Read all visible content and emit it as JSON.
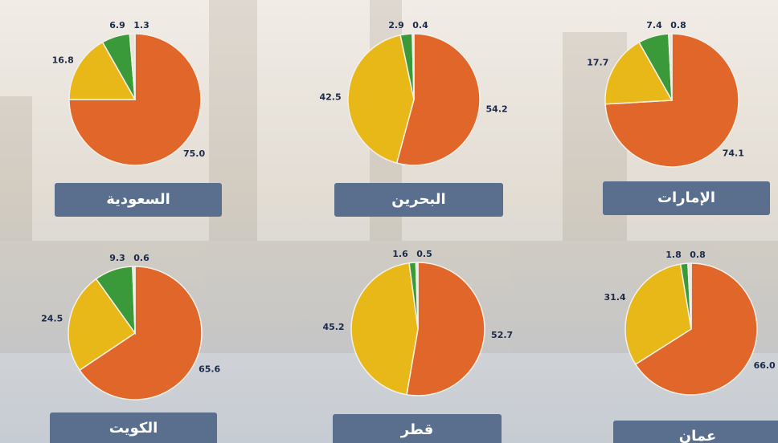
{
  "chart_data": [
    {
      "type": "pie",
      "title": "السعودية",
      "values": [
        75.0,
        16.8,
        6.9,
        1.3
      ],
      "value_labels": [
        "75.0",
        "16.8",
        "6.9",
        "1.3"
      ],
      "colors": [
        "#e0662a",
        "#e8b818",
        "#3a9a3a",
        "#e8e6dc"
      ]
    },
    {
      "type": "pie",
      "title": "البحرين",
      "values": [
        54.2,
        42.5,
        2.9,
        0.4
      ],
      "value_labels": [
        "54.2",
        "42.5",
        "2.9",
        "0.4"
      ],
      "colors": [
        "#e0662a",
        "#e8b818",
        "#3a9a3a",
        "#e8e6dc"
      ]
    },
    {
      "type": "pie",
      "title": "الإمارات",
      "values": [
        74.1,
        17.7,
        7.4,
        0.8
      ],
      "value_labels": [
        "74.1",
        "17.7",
        "7.4",
        "0.8"
      ],
      "colors": [
        "#e0662a",
        "#e8b818",
        "#3a9a3a",
        "#e8e6dc"
      ]
    },
    {
      "type": "pie",
      "title": "الكويت",
      "values": [
        65.6,
        24.5,
        9.3,
        0.6
      ],
      "value_labels": [
        "65.6",
        "24.5",
        "9.3",
        "0.6"
      ],
      "colors": [
        "#e0662a",
        "#e8b818",
        "#3a9a3a",
        "#e8e6dc"
      ]
    },
    {
      "type": "pie",
      "title": "قطر",
      "values": [
        52.7,
        45.2,
        1.6,
        0.5
      ],
      "value_labels": [
        "52.7",
        "45.2",
        "1.6",
        "0.5"
      ],
      "colors": [
        "#e0662a",
        "#e8b818",
        "#3a9a3a",
        "#e8e6dc"
      ]
    },
    {
      "type": "pie",
      "title": "عمان",
      "values": [
        66.0,
        31.4,
        1.8,
        0.8
      ],
      "value_labels": [
        "66.0",
        "31.4",
        "1.8",
        "0.8"
      ],
      "colors": [
        "#e0662a",
        "#e8b818",
        "#3a9a3a",
        "#e8e6dc"
      ]
    }
  ]
}
